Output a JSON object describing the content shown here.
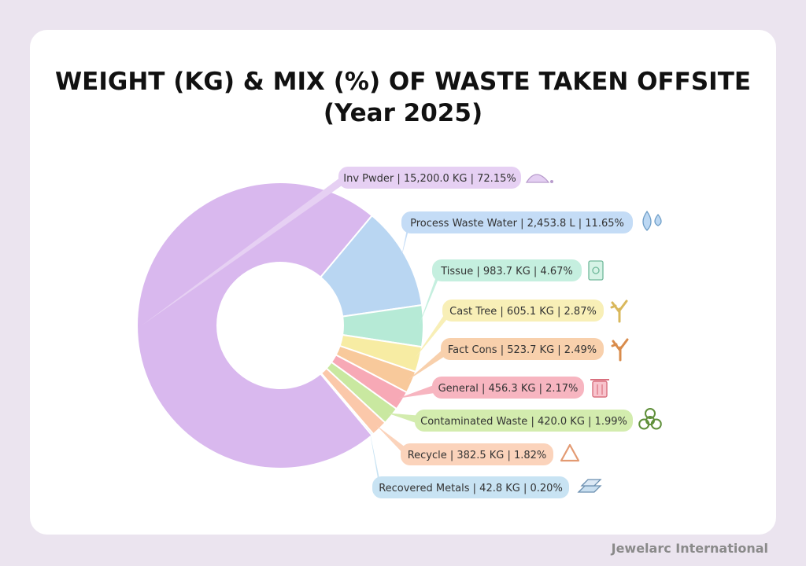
{
  "title_line1": "WEIGHT (KG) & MIX (%) OF WASTE TAKEN OFFSITE",
  "title_line2": "(Year 2025)",
  "footer": "Jewelarc International",
  "chart_data": {
    "type": "pie",
    "style": "donut",
    "title": "WEIGHT (KG) & MIX (%) OF WASTE TAKEN OFFSITE (Year 2025)",
    "slices": [
      {
        "label": "Inv Pwder | 15,200.0 KG | 72.15%",
        "value": 72.15,
        "color": "#d9b8ee",
        "label_color": "#e6d0f3",
        "icon": "powder-icon"
      },
      {
        "label": "Process Waste Water | 2,453.8  L  | 11.65%",
        "value": 11.65,
        "color": "#b9d6f2",
        "label_color": "#c4dcf6",
        "icon": "water-drops-icon"
      },
      {
        "label": "Tissue | 983.7 KG | 4.67%",
        "value": 4.67,
        "color": "#b6ead6",
        "label_color": "#c5efdf",
        "icon": "tissue-icon"
      },
      {
        "label": "Cast Tree | 605.1 KG | 2.87%",
        "value": 2.87,
        "color": "#f7eca3",
        "label_color": "#f8efb7",
        "icon": "cast-tree-icon"
      },
      {
        "label": "Fact Cons | 523.7 KG | 2.49%",
        "value": 2.49,
        "color": "#f8c99b",
        "label_color": "#f8d0ac",
        "icon": "branch-icon"
      },
      {
        "label": "General | 456.3 KG | 2.17%",
        "value": 2.17,
        "color": "#f7a9b6",
        "label_color": "#f7b5c0",
        "icon": "trash-bin-icon"
      },
      {
        "label": "Contaminated Waste | 420.0 KG | 1.99%",
        "value": 1.99,
        "color": "#c9e8a0",
        "label_color": "#d3ecae",
        "icon": "biohazard-icon"
      },
      {
        "label": "Recycle | 382.5 KG | 1.82%",
        "value": 1.82,
        "color": "#fbc8aa",
        "label_color": "#fbd3bb",
        "icon": "recycle-icon"
      },
      {
        "label": "Recovered Metals | 42.8 KG | 0.20%",
        "value": 0.2,
        "color": "#bfe0f0",
        "label_color": "#c8e3f3",
        "icon": "metal-bars-icon"
      }
    ],
    "start_angle_deg": 0,
    "direction": "clockwise",
    "legend": "callout-labels-right"
  }
}
